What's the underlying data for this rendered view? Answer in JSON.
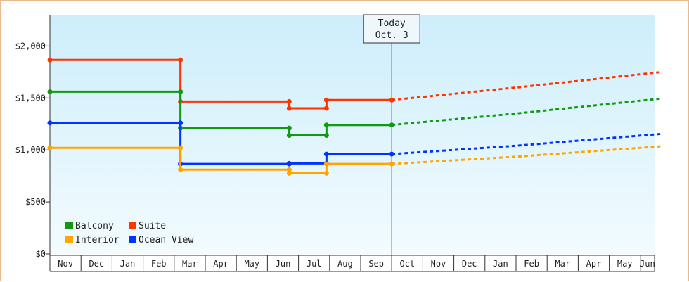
{
  "chart_data": {
    "type": "line",
    "title": "",
    "xlabel": "",
    "ylabel": "",
    "x_months": [
      "Nov",
      "Dec",
      "Jan",
      "Feb",
      "Mar",
      "Apr",
      "May",
      "Jun",
      "Jul",
      "Aug",
      "Sep",
      "Oct",
      "Nov",
      "Dec",
      "Jan",
      "Feb",
      "Mar",
      "Apr",
      "May",
      "Jun"
    ],
    "y_ticks": [
      "$0",
      "$500",
      "$1,000",
      "$1,500",
      "$2,000"
    ],
    "ylim": [
      0,
      2300
    ],
    "y_tick_values": [
      0,
      500,
      1000,
      1500,
      2000
    ],
    "today": {
      "label_line1": "Today",
      "label_line2": "Oct. 3",
      "x": 11.0
    },
    "grid": false,
    "legend_placement": "bottom-left",
    "series": [
      {
        "name": "Suite",
        "color": "#ff3300",
        "points": [
          [
            0,
            1865
          ],
          [
            4.2,
            1865
          ],
          [
            4.2,
            1465
          ],
          [
            7.7,
            1465
          ],
          [
            7.7,
            1400
          ],
          [
            8.9,
            1400
          ],
          [
            8.9,
            1480
          ],
          [
            11.0,
            1480
          ]
        ],
        "projection": [
          [
            11.0,
            1480
          ],
          [
            15.0,
            1600
          ],
          [
            19.7,
            1750
          ]
        ]
      },
      {
        "name": "Balcony",
        "color": "#119911",
        "points": [
          [
            0,
            1560
          ],
          [
            4.2,
            1560
          ],
          [
            4.2,
            1210
          ],
          [
            7.7,
            1210
          ],
          [
            7.7,
            1140
          ],
          [
            8.9,
            1140
          ],
          [
            8.9,
            1240
          ],
          [
            11.0,
            1240
          ]
        ],
        "projection": [
          [
            11.0,
            1240
          ],
          [
            15.0,
            1350
          ],
          [
            19.7,
            1495
          ]
        ]
      },
      {
        "name": "Ocean View",
        "color": "#0033ff",
        "points": [
          [
            0,
            1260
          ],
          [
            4.2,
            1260
          ],
          [
            4.2,
            865
          ],
          [
            7.7,
            865
          ],
          [
            7.7,
            870
          ],
          [
            8.9,
            870
          ],
          [
            8.9,
            960
          ],
          [
            11.0,
            960
          ]
        ],
        "projection": [
          [
            11.0,
            960
          ],
          [
            15.0,
            1040
          ],
          [
            19.7,
            1155
          ]
        ]
      },
      {
        "name": "Interior",
        "color": "#ffa500",
        "points": [
          [
            0,
            1020
          ],
          [
            4.2,
            1020
          ],
          [
            4.2,
            810
          ],
          [
            7.7,
            810
          ],
          [
            7.7,
            775
          ],
          [
            8.9,
            775
          ],
          [
            8.9,
            865
          ],
          [
            11.0,
            865
          ]
        ],
        "projection": [
          [
            11.0,
            865
          ],
          [
            15.0,
            935
          ],
          [
            19.7,
            1035
          ]
        ]
      }
    ],
    "legend": [
      {
        "name": "Balcony",
        "color": "#119911"
      },
      {
        "name": "Suite",
        "color": "#ff3300"
      },
      {
        "name": "Interior",
        "color": "#ffa500"
      },
      {
        "name": "Ocean View",
        "color": "#0033ff"
      }
    ]
  }
}
